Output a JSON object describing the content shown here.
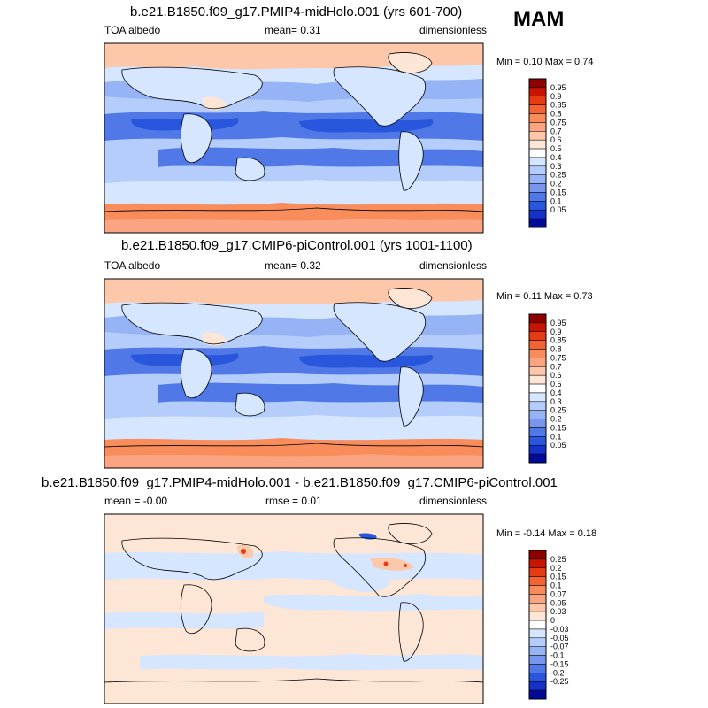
{
  "season": "MAM",
  "panels": [
    {
      "title": "b.e21.B1850.f09_g17.PMIP4-midHolo.001 (yrs 601-700)",
      "left_label": "TOA albedo",
      "mid_label": "mean=   0.31",
      "right_label": "dimensionless",
      "minmax": "Min =  0.10 Max =  0.74",
      "colorbar_labels": [
        "0.95",
        "0.9",
        "0.85",
        "0.8",
        "0.75",
        "0.7",
        "0.6",
        "0.5",
        "0.4",
        "0.3",
        "0.25",
        "0.2",
        "0.15",
        "0.1",
        "0.05"
      ],
      "colorbar_colors": [
        "#8c0000",
        "#c81400",
        "#e63c14",
        "#f46432",
        "#f88c5a",
        "#fba482",
        "#fdc8aa",
        "#fde6d6",
        "#ffffff",
        "#d6e6ff",
        "#b4cdfa",
        "#96b4f5",
        "#7896ee",
        "#5078e6",
        "#2856dc",
        "#1432c8",
        "#000a96"
      ],
      "map_type": "absolute"
    },
    {
      "title": "b.e21.B1850.f09_g17.CMIP6-piControl.001 (yrs 1001-1100)",
      "left_label": "TOA albedo",
      "mid_label": "mean=   0.32",
      "right_label": "dimensionless",
      "minmax": "Min =  0.11 Max =  0.73",
      "colorbar_labels": [
        "0.95",
        "0.9",
        "0.85",
        "0.8",
        "0.75",
        "0.7",
        "0.6",
        "0.5",
        "0.4",
        "0.3",
        "0.25",
        "0.2",
        "0.15",
        "0.1",
        "0.05"
      ],
      "colorbar_colors": [
        "#8c0000",
        "#c81400",
        "#e63c14",
        "#f46432",
        "#f88c5a",
        "#fba482",
        "#fdc8aa",
        "#fde6d6",
        "#ffffff",
        "#d6e6ff",
        "#b4cdfa",
        "#96b4f5",
        "#7896ee",
        "#5078e6",
        "#2856dc",
        "#1432c8",
        "#000a96"
      ],
      "map_type": "absolute"
    },
    {
      "title": "b.e21.B1850.f09_g17.PMIP4-midHolo.001 - b.e21.B1850.f09_g17.CMIP6-piControl.001",
      "left_label": "mean =  -0.00",
      "mid_label": "rmse =  0.01",
      "right_label": "dimensionless",
      "minmax": "Min =  -0.14 Max =  0.18",
      "colorbar_labels": [
        "0.25",
        "0.2",
        "0.15",
        "0.1",
        "0.07",
        "0.05",
        "0.03",
        "0",
        "-0.03",
        "-0.05",
        "-0.07",
        "-0.1",
        "-0.15",
        "-0.2",
        "-0.25"
      ],
      "colorbar_colors": [
        "#8c0000",
        "#c81400",
        "#e63c14",
        "#f46432",
        "#f88c5a",
        "#fba482",
        "#fdc8aa",
        "#fde6d6",
        "#ffffff",
        "#d6e6ff",
        "#b4cdfa",
        "#96b4f5",
        "#7896ee",
        "#5078e6",
        "#2856dc",
        "#1432c8",
        "#000a96"
      ],
      "map_type": "difference"
    }
  ]
}
